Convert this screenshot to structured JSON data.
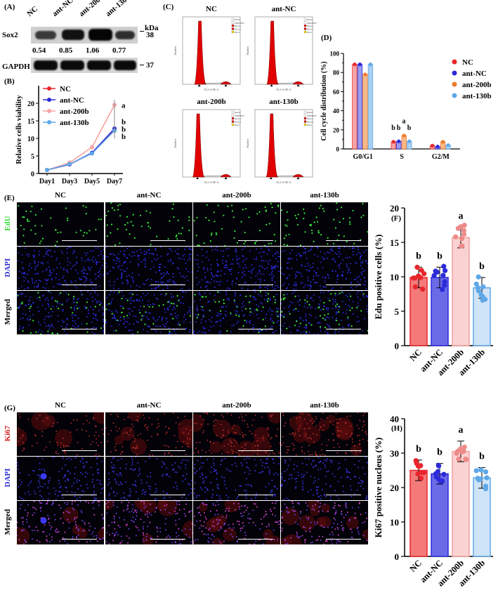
{
  "panel_labels": {
    "A": "(A)",
    "B": "(B)",
    "C": "(C)",
    "D": "(D)",
    "E": "(E)",
    "F": "(F)",
    "G": "(G)",
    "H": "(H)"
  },
  "groups": [
    "NC",
    "ant-NC",
    "ant-200b",
    "ant-130b"
  ],
  "colors": {
    "NC": "#e8262b",
    "ant_NC": "#2b2bd9",
    "ant_200b": "#f7a3a3",
    "ant_130b": "#5fa8e8",
    "orange": "#f07a2a"
  },
  "western": {
    "kda_label": "kDa",
    "rows": [
      {
        "name": "Sox2",
        "kda": "38"
      },
      {
        "name": "GAPDH",
        "kda": "37"
      }
    ],
    "ratios": [
      "0.54",
      "0.85",
      "1.06",
      "0.77"
    ]
  },
  "flow": {
    "titles": [
      "NC",
      "ant-NC",
      "ant-200b",
      "ant-130b"
    ],
    "legend": [
      "Debris",
      "Aggregates",
      "Dip G1",
      "Dip G2",
      "Dip S"
    ],
    "xlabel": "FL2-A:PE-A",
    "ylabel": "Number"
  },
  "imaging": {
    "edu_rows": [
      "EdU",
      "DAPI",
      "Merged"
    ],
    "ki67_rows": [
      "Ki67",
      "DAPI",
      "Merged"
    ]
  },
  "chart_data": [
    {
      "id": "B",
      "type": "line",
      "ylabel": "Relative cells viability",
      "categories": [
        "Day1",
        "Day3",
        "Day5",
        "Day7"
      ],
      "ylim": [
        0,
        25
      ],
      "yticks": [
        0,
        5,
        10,
        15,
        20
      ],
      "series": [
        {
          "name": "NC",
          "values": [
            1,
            2.6,
            5.8,
            12.5
          ]
        },
        {
          "name": "ant-NC",
          "values": [
            1,
            2.6,
            5.9,
            12.8
          ]
        },
        {
          "name": "ant-200b",
          "values": [
            1,
            3.1,
            7.5,
            19.5
          ]
        },
        {
          "name": "ant-130b",
          "values": [
            1,
            2.7,
            5.7,
            12.2
          ]
        }
      ],
      "annotations": [
        "a",
        "b",
        "b",
        "b"
      ]
    },
    {
      "id": "D",
      "type": "bar",
      "ylabel": "Cell cycle distribution (%)",
      "categories": [
        "G0/G1",
        "S",
        "G2/M"
      ],
      "ylim": [
        0,
        100
      ],
      "yticks": [
        0,
        10,
        20,
        30,
        40,
        50,
        60,
        70,
        80,
        90,
        100
      ],
      "series": [
        {
          "name": "NC",
          "values": [
            88.5,
            7.5,
            3.5
          ]
        },
        {
          "name": "ant-NC",
          "values": [
            88.5,
            8,
            2.5
          ]
        },
        {
          "name": "ant-200b",
          "values": [
            78,
            14,
            7.5
          ]
        },
        {
          "name": "ant-130b",
          "values": [
            88.5,
            8,
            4
          ]
        }
      ],
      "annotations": [
        "b",
        "b",
        "a",
        "b"
      ]
    },
    {
      "id": "F",
      "type": "bar",
      "ylabel": "Edu positive cells (%)",
      "categories": [
        "NC",
        "ant-NC",
        "ant-200b",
        "ant-130b"
      ],
      "values": [
        9.9,
        9.9,
        15.7,
        8.4
      ],
      "ylim": [
        0,
        20
      ],
      "yticks": [
        0,
        5,
        10,
        15,
        20
      ],
      "annotations": [
        "b",
        "b",
        "a",
        "b"
      ]
    },
    {
      "id": "H",
      "type": "bar",
      "ylabel": "Ki67 positive nucleus (%)",
      "categories": [
        "NC",
        "ant-NC",
        "ant-200b",
        "ant-130b"
      ],
      "values": [
        25,
        24,
        30.5,
        22.8
      ],
      "ylim": [
        0,
        40
      ],
      "yticks": [
        0,
        10,
        20,
        30,
        40
      ],
      "annotations": [
        "b",
        "b",
        "a",
        "b"
      ]
    }
  ]
}
